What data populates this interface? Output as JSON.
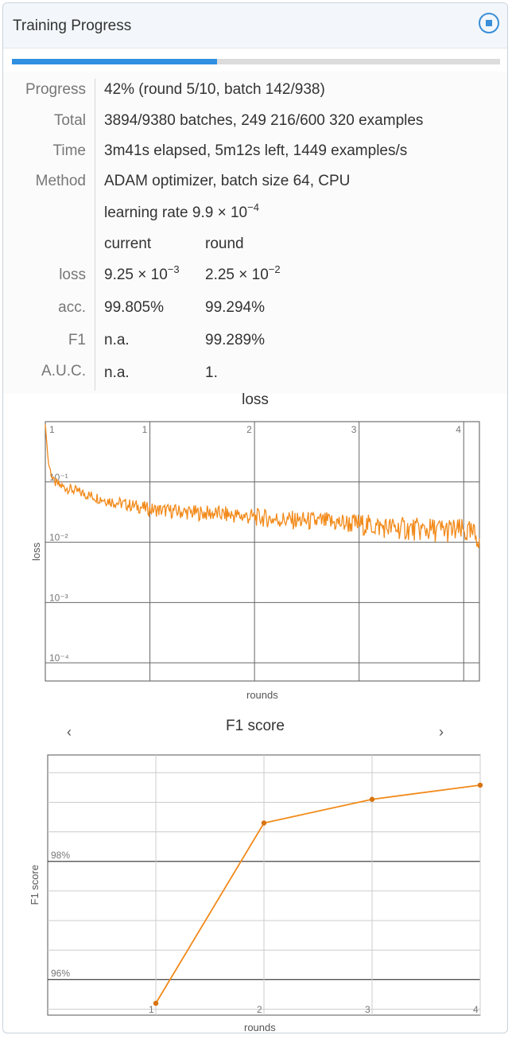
{
  "header": {
    "title": "Training Progress",
    "stop_icon": "stop-circle-icon"
  },
  "progress": {
    "fraction": 0.42
  },
  "info": {
    "progress_label": "Progress",
    "progress_value": "42% (round 5/10, batch 142/938)",
    "total_label": "Total",
    "total_value": "3894/9380 batches, 249 216/600 320 examples",
    "time_label": "Time",
    "time_value": "3m41s elapsed, 5m12s left, 1449 examples/s",
    "method_label": "Method",
    "method_value": "ADAM optimizer, batch size 64, CPU",
    "lr_text": "learning rate 9.9",
    "lr_mult": "× 10",
    "lr_exp": "−4",
    "col_current": "current",
    "col_round": "round",
    "loss_label": "loss",
    "loss_current_mant": "9.25",
    "loss_current_mult": "× 10",
    "loss_current_exp": "−3",
    "loss_round_mant": "2.25",
    "loss_round_mult": "× 10",
    "loss_round_exp": "−2",
    "acc_label": "acc.",
    "acc_current": "99.805%",
    "acc_round": "99.294%",
    "f1_label": "F1",
    "f1_current": "n.a.",
    "f1_round": "99.289%",
    "auc_label": "A.U.C.",
    "auc_current": "n.a.",
    "auc_round": "1."
  },
  "chart_data": [
    {
      "type": "line",
      "title": "loss",
      "xlabel": "rounds",
      "ylabel": "loss",
      "yscale": "log",
      "ylim": [
        5e-05,
        1
      ],
      "xlim": [
        0,
        4.15
      ],
      "x_ticks": [
        "1",
        "2",
        "3",
        "4"
      ],
      "y_ticks": [
        "1",
        "10⁻¹",
        "10⁻²",
        "10⁻³",
        "10⁻⁴"
      ],
      "series": [
        {
          "color": "#f28a1a",
          "points": [
            [
              0.0,
              0.9
            ],
            [
              0.03,
              0.2
            ],
            [
              0.08,
              0.1
            ],
            [
              0.15,
              0.085
            ],
            [
              0.25,
              0.075
            ],
            [
              0.35,
              0.065
            ],
            [
              0.45,
              0.058
            ],
            [
              0.55,
              0.052
            ],
            [
              0.65,
              0.047
            ],
            [
              0.75,
              0.043
            ],
            [
              0.85,
              0.04
            ],
            [
              0.95,
              0.037
            ],
            [
              1.0,
              0.035
            ],
            [
              1.2,
              0.033
            ],
            [
              1.4,
              0.031
            ],
            [
              1.6,
              0.03
            ],
            [
              1.8,
              0.028
            ],
            [
              2.0,
              0.026
            ],
            [
              2.2,
              0.024
            ],
            [
              2.4,
              0.023
            ],
            [
              2.6,
              0.022
            ],
            [
              2.8,
              0.021
            ],
            [
              3.0,
              0.02
            ],
            [
              3.2,
              0.018
            ],
            [
              3.4,
              0.017
            ],
            [
              3.6,
              0.016
            ],
            [
              3.8,
              0.016
            ],
            [
              4.0,
              0.015
            ],
            [
              4.1,
              0.013
            ],
            [
              4.15,
              0.012
            ]
          ]
        }
      ]
    },
    {
      "type": "line",
      "title": "F1 score",
      "xlabel": "rounds",
      "ylabel": "F1 score",
      "ylim": [
        95.4,
        99.8
      ],
      "xlim": [
        0,
        4
      ],
      "x_ticks": [
        "1",
        "2",
        "3",
        "4"
      ],
      "y_ticks": [
        "96%",
        "98%"
      ],
      "series": [
        {
          "color": "#f28a1a",
          "points": [
            [
              1,
              95.6
            ],
            [
              2,
              98.65
            ],
            [
              3,
              99.05
            ],
            [
              4,
              99.29
            ]
          ]
        }
      ]
    }
  ],
  "f1_nav": {
    "prev": "‹",
    "next": "›"
  }
}
